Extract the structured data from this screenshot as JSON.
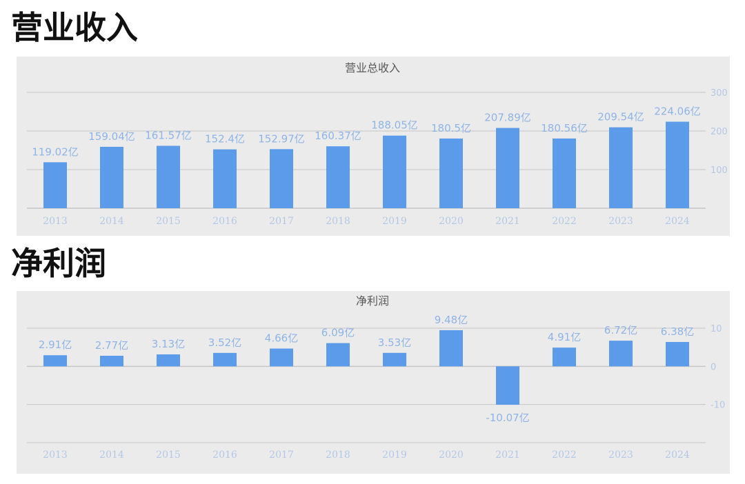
{
  "headings": {
    "revenue": "营业收入",
    "profit": "净利润"
  },
  "colors": {
    "bar": "#5b9bea",
    "label": "#8fb4e6",
    "axis_text": "#b3c8e6",
    "grid": "#c6c6c6",
    "panel_bg": "#ebebeb",
    "chart_title": "#595959"
  },
  "chart_data": [
    {
      "id": "revenue",
      "type": "bar",
      "title": "营业总收入",
      "categories": [
        "2013",
        "2014",
        "2015",
        "2016",
        "2017",
        "2018",
        "2019",
        "2020",
        "2021",
        "2022",
        "2023",
        "2024"
      ],
      "values": [
        119.02,
        159.04,
        161.57,
        152.4,
        152.97,
        160.37,
        188.05,
        180.5,
        207.89,
        180.56,
        209.54,
        224.06
      ],
      "data_labels": [
        "119.02亿",
        "159.04亿",
        "161.57亿",
        "152.4亿",
        "152.97亿",
        "160.37亿",
        "188.05亿",
        "180.5亿",
        "207.89亿",
        "180.56亿",
        "209.54亿",
        "224.06亿"
      ],
      "ylim": [
        0,
        300
      ],
      "yticks": [
        100,
        200,
        300
      ],
      "ytick_labels": [
        "100",
        "200",
        "300"
      ],
      "y_axis_side": "right",
      "unit": "亿",
      "grid": true,
      "xlabel": "",
      "ylabel": ""
    },
    {
      "id": "profit",
      "type": "bar",
      "title": "净利润",
      "categories": [
        "2013",
        "2014",
        "2015",
        "2016",
        "2017",
        "2018",
        "2019",
        "2020",
        "2021",
        "2022",
        "2023",
        "2024"
      ],
      "values": [
        2.91,
        2.77,
        3.13,
        3.52,
        4.66,
        6.09,
        3.53,
        9.48,
        -10.07,
        4.91,
        6.72,
        6.38
      ],
      "data_labels": [
        "2.91亿",
        "2.77亿",
        "3.13亿",
        "3.52亿",
        "4.66亿",
        "6.09亿",
        "3.53亿",
        "9.48亿",
        "-10.07亿",
        "4.91亿",
        "6.72亿",
        "6.38亿"
      ],
      "ylim": [
        -20,
        10
      ],
      "yticks": [
        -10,
        0,
        10
      ],
      "ytick_labels": [
        "-10",
        "0",
        "10"
      ],
      "y_axis_side": "right",
      "unit": "亿",
      "grid": true,
      "xlabel": "",
      "ylabel": ""
    }
  ]
}
